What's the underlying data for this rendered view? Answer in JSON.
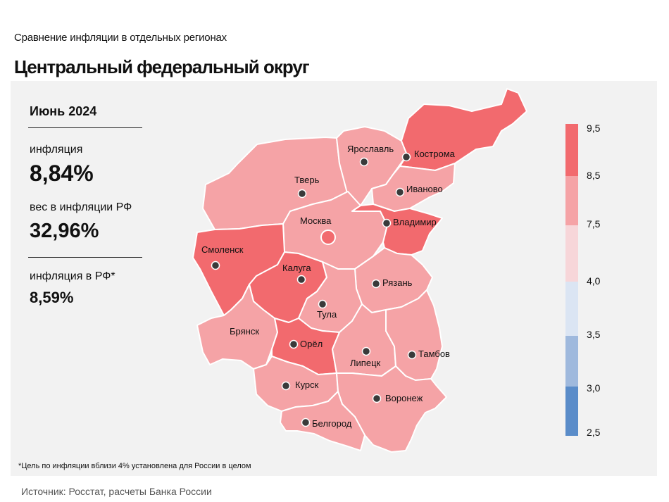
{
  "header": {
    "subtitle": "Сравнение инфляции в отдельных регионах",
    "title": "Центральный федеральный округ"
  },
  "info": {
    "date": "Июнь 2024",
    "inflation_label": "инфляция",
    "inflation_value": "8,84%",
    "weight_label": "вес в инфляции РФ",
    "weight_value": "32,96%",
    "rf_label": "инфляция в РФ*",
    "rf_value": "8,59%"
  },
  "colors": {
    "band_8_5_9_5": "#f26a6e",
    "band_7_5_8_5": "#f5a3a6",
    "band_4_0_7_5": "#f7d6d9",
    "band_3_5_4_0": "#dbe5f3",
    "band_3_0_3_5": "#9fb9dd",
    "band_2_5_3_0": "#5a8cc9"
  },
  "legend": {
    "ticks": [
      "9,5",
      "8,5",
      "7,5",
      "4,0",
      "3,5",
      "3,0",
      "2,5"
    ]
  },
  "regions": [
    {
      "name": "Ярославль",
      "band": "7,5–8,5"
    },
    {
      "name": "Кострома",
      "band": "8,5–9,5"
    },
    {
      "name": "Тверь",
      "band": "7,5–8,5"
    },
    {
      "name": "Иваново",
      "band": "7,5–8,5"
    },
    {
      "name": "Москва",
      "band": "7,5–8,5"
    },
    {
      "name": "Владимир",
      "band": "8,5–9,5"
    },
    {
      "name": "Смоленск",
      "band": "8,5–9,5"
    },
    {
      "name": "Калуга",
      "band": "8,5–9,5"
    },
    {
      "name": "Рязань",
      "band": "7,5–8,5"
    },
    {
      "name": "Тула",
      "band": "7,5–8,5"
    },
    {
      "name": "Брянск",
      "band": "7,5–8,5"
    },
    {
      "name": "Орёл",
      "band": "8,5–9,5"
    },
    {
      "name": "Липецк",
      "band": "7,5–8,5"
    },
    {
      "name": "Тамбов",
      "band": "7,5–8,5"
    },
    {
      "name": "Курск",
      "band": "7,5–8,5"
    },
    {
      "name": "Воронеж",
      "band": "7,5–8,5"
    },
    {
      "name": "Белгород",
      "band": "7,5–8,5"
    }
  ],
  "footnote": "*Цель по инфляции вблизи 4% установлена для России в целом",
  "source": "Источник: Росстат, расчеты Банка России"
}
